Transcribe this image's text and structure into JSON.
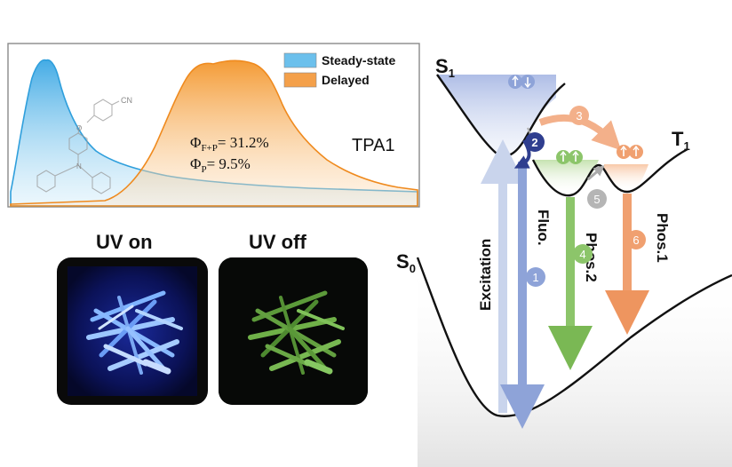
{
  "spectrum": {
    "legend": [
      {
        "label": "Steady-state",
        "color": "#4fb4e8"
      },
      {
        "label": "Delayed",
        "color": "#f39a32"
      }
    ],
    "phi_fp_symbol": "Φ",
    "phi_fp_sub": "F+P",
    "phi_fp_value": "= 31.2%",
    "phi_p_symbol": "Φ",
    "phi_p_sub": "P",
    "phi_p_value": "= 9.5%",
    "compound": "TPA1",
    "substituent": "CN"
  },
  "photos": {
    "uv_on_label": "UV on",
    "uv_off_label": "UV off"
  },
  "diagram": {
    "s1_main": "S",
    "s1_sub": "1",
    "t1_main": "T",
    "t1_sub": "1",
    "s0_main": "S",
    "s0_sub": "0",
    "excitation": "Excitation",
    "fluo": "Fluo.",
    "phos2": "Phos.2",
    "phos1": "Phos.1",
    "steps": [
      "1",
      "2",
      "3",
      "4",
      "5",
      "6"
    ],
    "colors": {
      "excitation": "#c9d4ec",
      "fluo": "#8ea3d8",
      "phos2": "#8cc56a",
      "phos1": "#f0a070",
      "isc": "#f3b08a",
      "ic": "#2f3e8f",
      "gray": "#b5b5b5"
    }
  }
}
